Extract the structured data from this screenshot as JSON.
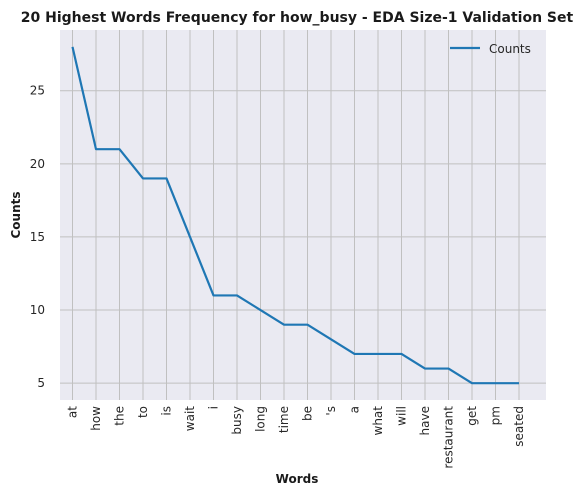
{
  "chart_data": {
    "type": "line",
    "title": "20 Highest Words Frequency for how_busy - EDA Size-1 Validation Set",
    "xlabel": "Words",
    "ylabel": "Counts",
    "categories": [
      "at",
      "how",
      "the",
      "to",
      "is",
      "wait",
      "i",
      "busy",
      "long",
      "time",
      "be",
      "'s",
      "a",
      "what",
      "will",
      "have",
      "restaurant",
      "get",
      "pm",
      "seated"
    ],
    "series": [
      {
        "name": "Counts",
        "values": [
          28,
          21,
          21,
          19,
          19,
          15,
          11,
          11,
          10,
          9,
          9,
          8,
          7,
          7,
          7,
          6,
          6,
          5,
          5,
          5
        ],
        "color": "#1f77b4"
      }
    ],
    "yticks": [
      5,
      10,
      15,
      20,
      25
    ],
    "ylim": [
      3.85,
      29.15
    ],
    "grid": true,
    "legend_position": "top-right",
    "background": "#eaeaf2",
    "grid_color": "#c0c0c0"
  }
}
